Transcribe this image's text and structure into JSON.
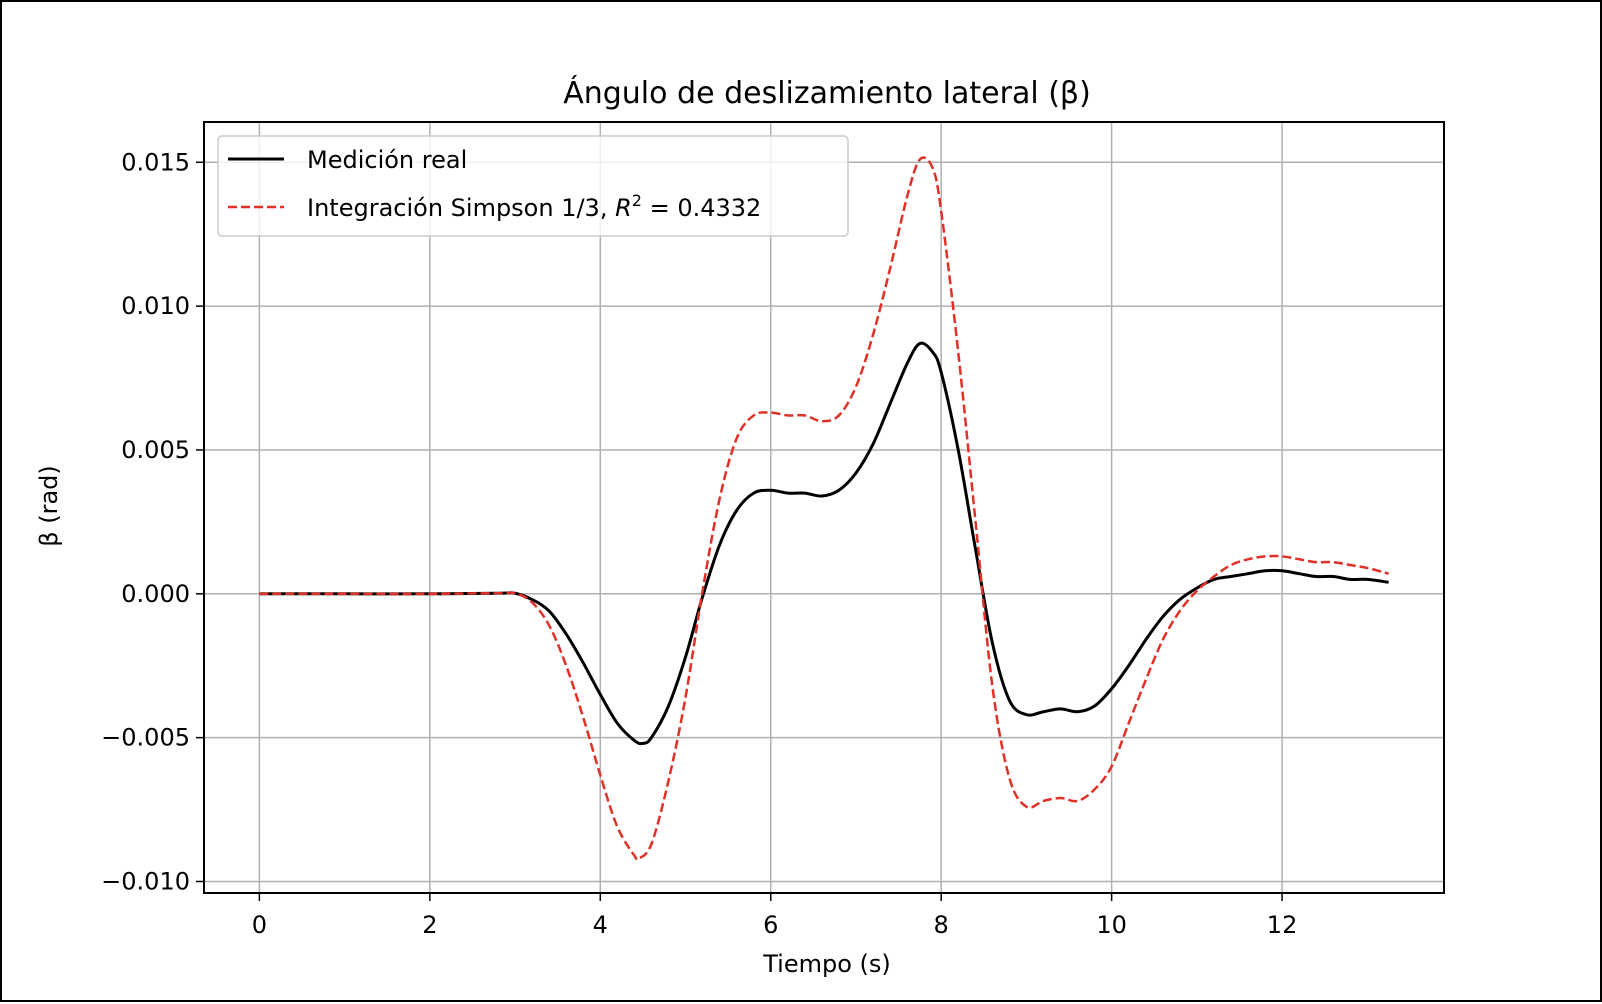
{
  "chart_data": {
    "type": "line",
    "title": "Ángulo de deslizamiento lateral (β)",
    "xlabel": "Tiempo (s)",
    "ylabel": "β (rad)",
    "xlim": [
      -0.65,
      13.9
    ],
    "ylim": [
      -0.0104,
      0.0164
    ],
    "xticks": [
      0,
      2,
      4,
      6,
      8,
      10,
      12
    ],
    "xtick_labels": [
      "0",
      "2",
      "4",
      "6",
      "8",
      "10",
      "12"
    ],
    "yticks": [
      -0.01,
      -0.005,
      0.0,
      0.005,
      0.01,
      0.015
    ],
    "ytick_labels": [
      "−0.010",
      "−0.005",
      "0.000",
      "0.005",
      "0.010",
      "0.015"
    ],
    "grid": true,
    "legend_position": "upper-left",
    "series": [
      {
        "name": "Medición real",
        "color": "#000000",
        "style": "solid",
        "x": [
          0,
          1,
          2,
          2.8,
          3.0,
          3.2,
          3.4,
          3.6,
          3.8,
          4.0,
          4.2,
          4.4,
          4.5,
          4.6,
          4.8,
          5.0,
          5.2,
          5.4,
          5.6,
          5.8,
          6.0,
          6.2,
          6.4,
          6.6,
          6.8,
          7.0,
          7.2,
          7.4,
          7.6,
          7.75,
          7.9,
          8.0,
          8.2,
          8.4,
          8.6,
          8.8,
          9.0,
          9.2,
          9.4,
          9.6,
          9.8,
          10.0,
          10.2,
          10.4,
          10.6,
          10.8,
          11.0,
          11.2,
          11.4,
          11.6,
          11.8,
          12.0,
          12.2,
          12.4,
          12.6,
          12.8,
          13.0,
          13.25
        ],
        "y": [
          0,
          0,
          0,
          2e-05,
          2e-05,
          -0.0002,
          -0.0006,
          -0.0014,
          -0.0024,
          -0.0035,
          -0.0045,
          -0.0051,
          -0.0052,
          -0.005,
          -0.0039,
          -0.0022,
          -0.0001,
          0.0017,
          0.0029,
          0.0035,
          0.0036,
          0.0035,
          0.0035,
          0.0034,
          0.0036,
          0.0042,
          0.0052,
          0.0066,
          0.008,
          0.0087,
          0.0084,
          0.0077,
          0.005,
          0.0016,
          -0.0017,
          -0.0037,
          -0.0042,
          -0.0041,
          -0.004,
          -0.0041,
          -0.0039,
          -0.0033,
          -0.0025,
          -0.0016,
          -0.0008,
          -0.0002,
          0.0002,
          0.0005,
          0.0006,
          0.0007,
          0.0008,
          0.0008,
          0.0007,
          0.0006,
          0.0006,
          0.0005,
          0.0005,
          0.0004
        ]
      },
      {
        "name": "Integración Simpson 1/3, R² = 0.4332",
        "name_parts": {
          "prefix": "Integración Simpson 1/3, ",
          "var": "R",
          "sup": "2",
          "suffix": " = 0.4332"
        },
        "color": "#e03027",
        "style": "dashed",
        "x": [
          0,
          1,
          2,
          2.8,
          3.0,
          3.2,
          3.4,
          3.6,
          3.8,
          4.0,
          4.2,
          4.4,
          4.45,
          4.6,
          4.8,
          5.0,
          5.2,
          5.4,
          5.6,
          5.8,
          6.0,
          6.2,
          6.4,
          6.6,
          6.8,
          7.0,
          7.2,
          7.4,
          7.6,
          7.75,
          7.9,
          8.0,
          8.2,
          8.4,
          8.6,
          8.8,
          9.0,
          9.2,
          9.4,
          9.6,
          9.8,
          10.0,
          10.2,
          10.4,
          10.6,
          10.8,
          11.0,
          11.2,
          11.4,
          11.6,
          11.8,
          12.0,
          12.2,
          12.4,
          12.6,
          12.8,
          13.0,
          13.25
        ],
        "y": [
          0,
          0,
          0,
          2e-05,
          2e-05,
          -0.0003,
          -0.0011,
          -0.0025,
          -0.0043,
          -0.0063,
          -0.0081,
          -0.0091,
          -0.0092,
          -0.0087,
          -0.0065,
          -0.0036,
          0.0001,
          0.0033,
          0.0054,
          0.0062,
          0.0063,
          0.0062,
          0.0062,
          0.006,
          0.0062,
          0.0072,
          0.009,
          0.0113,
          0.0138,
          0.0151,
          0.0148,
          0.0133,
          0.0084,
          0.0026,
          -0.0032,
          -0.0064,
          -0.0074,
          -0.0072,
          -0.0071,
          -0.0072,
          -0.0068,
          -0.006,
          -0.0045,
          -0.003,
          -0.0016,
          -0.0006,
          0.0001,
          0.0006,
          0.001,
          0.0012,
          0.0013,
          0.0013,
          0.0012,
          0.0011,
          0.0011,
          0.001,
          0.0009,
          0.0007
        ]
      }
    ]
  }
}
